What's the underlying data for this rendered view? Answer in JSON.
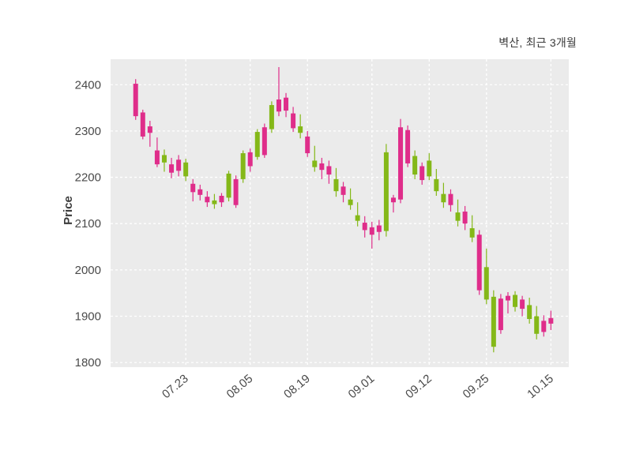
{
  "title": "벽산, 최근 3개월",
  "chart_data": {
    "type": "candlestick",
    "title": "벽산, 최근 3개월",
    "xlabel": "",
    "ylabel": "Price",
    "ylim": [
      1790,
      2455
    ],
    "y_ticks": [
      1800,
      1900,
      2000,
      2100,
      2200,
      2300,
      2400
    ],
    "x_tick_labels": [
      "07.23",
      "08.05",
      "08.19",
      "09.01",
      "09.12",
      "09.25",
      "10.15"
    ],
    "x_tick_indices": [
      7,
      16,
      24,
      33,
      41,
      49,
      58
    ],
    "grid": true,
    "legend": "none",
    "colors": {
      "up": "#df2d8a",
      "down": "#84b818",
      "plot_bg": "#ebebeb",
      "grid": "#ffffff",
      "tick_text": "#4a4a4a"
    },
    "candles_format": [
      "open",
      "high",
      "low",
      "close"
    ],
    "candles": [
      [
        2332,
        2412,
        2324,
        2402
      ],
      [
        2288,
        2346,
        2282,
        2340
      ],
      [
        2296,
        2322,
        2266,
        2310
      ],
      [
        2228,
        2286,
        2222,
        2258
      ],
      [
        2248,
        2260,
        2212,
        2232
      ],
      [
        2210,
        2242,
        2198,
        2228
      ],
      [
        2214,
        2248,
        2202,
        2238
      ],
      [
        2232,
        2240,
        2192,
        2202
      ],
      [
        2168,
        2196,
        2148,
        2186
      ],
      [
        2162,
        2184,
        2150,
        2174
      ],
      [
        2146,
        2170,
        2136,
        2158
      ],
      [
        2150,
        2164,
        2132,
        2142
      ],
      [
        2146,
        2166,
        2136,
        2160
      ],
      [
        2208,
        2214,
        2148,
        2156
      ],
      [
        2140,
        2204,
        2134,
        2196
      ],
      [
        2252,
        2258,
        2188,
        2196
      ],
      [
        2224,
        2262,
        2212,
        2254
      ],
      [
        2298,
        2304,
        2238,
        2244
      ],
      [
        2248,
        2316,
        2242,
        2308
      ],
      [
        2356,
        2364,
        2296,
        2304
      ],
      [
        2342,
        2438,
        2332,
        2368
      ],
      [
        2344,
        2382,
        2330,
        2372
      ],
      [
        2306,
        2352,
        2298,
        2338
      ],
      [
        2310,
        2336,
        2284,
        2296
      ],
      [
        2252,
        2300,
        2244,
        2288
      ],
      [
        2236,
        2268,
        2212,
        2222
      ],
      [
        2216,
        2242,
        2196,
        2230
      ],
      [
        2206,
        2236,
        2186,
        2224
      ],
      [
        2196,
        2220,
        2158,
        2170
      ],
      [
        2162,
        2190,
        2146,
        2180
      ],
      [
        2152,
        2176,
        2130,
        2140
      ],
      [
        2118,
        2146,
        2094,
        2106
      ],
      [
        2086,
        2116,
        2070,
        2102
      ],
      [
        2076,
        2104,
        2046,
        2092
      ],
      [
        2082,
        2108,
        2064,
        2096
      ],
      [
        2254,
        2272,
        2072,
        2084
      ],
      [
        2146,
        2162,
        2124,
        2156
      ],
      [
        2152,
        2326,
        2144,
        2308
      ],
      [
        2230,
        2312,
        2222,
        2302
      ],
      [
        2246,
        2258,
        2196,
        2206
      ],
      [
        2194,
        2232,
        2184,
        2224
      ],
      [
        2236,
        2252,
        2194,
        2202
      ],
      [
        2196,
        2218,
        2160,
        2170
      ],
      [
        2164,
        2188,
        2134,
        2146
      ],
      [
        2140,
        2174,
        2126,
        2164
      ],
      [
        2124,
        2152,
        2094,
        2106
      ],
      [
        2100,
        2138,
        2086,
        2126
      ],
      [
        2090,
        2118,
        2060,
        2070
      ],
      [
        1956,
        2086,
        1946,
        2076
      ],
      [
        2006,
        2046,
        1926,
        1936
      ],
      [
        1942,
        1956,
        1822,
        1834
      ],
      [
        1870,
        1948,
        1862,
        1938
      ],
      [
        1934,
        1952,
        1906,
        1944
      ],
      [
        1946,
        1954,
        1910,
        1920
      ],
      [
        1916,
        1944,
        1900,
        1936
      ],
      [
        1924,
        1940,
        1884,
        1894
      ],
      [
        1900,
        1922,
        1850,
        1862
      ],
      [
        1866,
        1902,
        1856,
        1890
      ],
      [
        1884,
        1912,
        1870,
        1896
      ]
    ]
  }
}
